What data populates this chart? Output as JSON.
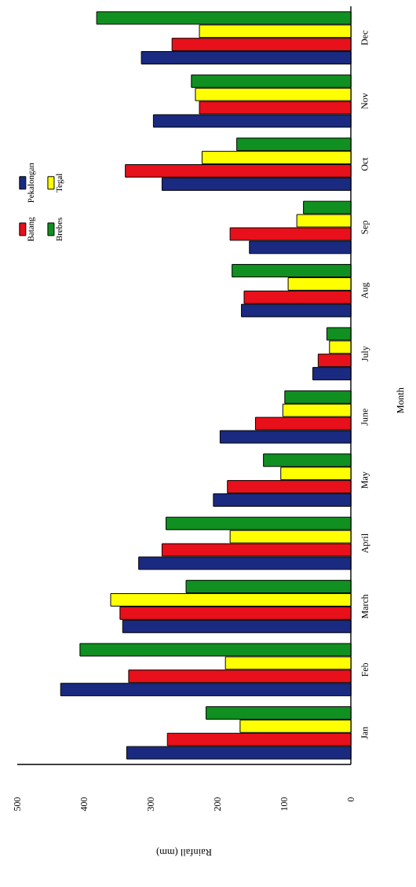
{
  "chart_data": {
    "type": "bar",
    "orientation": "horizontal",
    "xlabel": "Rainfall (mm)",
    "ylabel": "Month",
    "categories": [
      "Dec",
      "Nov",
      "Oct",
      "Sep",
      "Aug",
      "July",
      "June",
      "May",
      "April",
      "March",
      "Feb",
      "Jan"
    ],
    "series": [
      {
        "name": "Pekalongan",
        "color": "#1a2a80",
        "values": [
          314,
          296,
          283,
          152,
          164,
          57,
          196,
          206,
          318,
          342,
          435,
          336
        ]
      },
      {
        "name": "Batang",
        "color": "#e8101a",
        "values": [
          268,
          227,
          338,
          181,
          160,
          49,
          143,
          185,
          283,
          346,
          333,
          275
        ]
      },
      {
        "name": "Tegal",
        "color": "#ffff00",
        "values": [
          227,
          233,
          223,
          81,
          94,
          32,
          102,
          105,
          181,
          360,
          188,
          166
        ]
      },
      {
        "name": "Brebes",
        "color": "#109020",
        "values": [
          381,
          239,
          171,
          71,
          178,
          36,
          99,
          131,
          277,
          247,
          406,
          217
        ]
      }
    ],
    "xlim": [
      500,
      0
    ],
    "xticks": [
      500,
      400,
      300,
      200,
      100,
      0
    ],
    "grid": false,
    "legend": "top left"
  }
}
